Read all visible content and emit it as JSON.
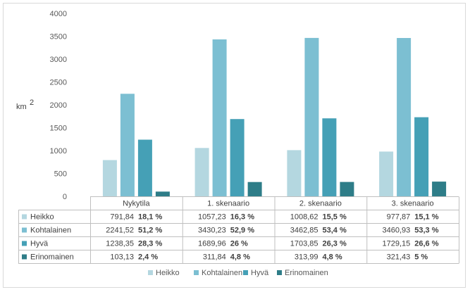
{
  "chart_data": {
    "type": "bar",
    "ylabel": "km",
    "ylabel_sup": "2",
    "ylim": [
      0,
      4000
    ],
    "yticks": [
      "0",
      "500",
      "1000",
      "1500",
      "2000",
      "2500",
      "3000",
      "3500",
      "4000"
    ],
    "categories": [
      "Nykytila",
      "1. skenaario",
      "2. skenaario",
      "3. skenaario"
    ],
    "series": [
      {
        "name": "Heikko",
        "color": "#b4d7e0",
        "values": [
          791.84,
          1057.23,
          1008.62,
          977.87
        ],
        "labels": [
          "791,84",
          "1057,23",
          "1008,62",
          "977,87"
        ],
        "pct": [
          "18,1 %",
          "16,3 %",
          "15,5 %",
          "15,1 %"
        ]
      },
      {
        "name": "Kohtalainen",
        "color": "#7cbfd2",
        "values": [
          2241.52,
          3430.23,
          3462.85,
          3460.93
        ],
        "labels": [
          "2241,52",
          "3430,23",
          "3462,85",
          "3460,93"
        ],
        "pct": [
          "51,2 %",
          "52,9 %",
          "53,4 %",
          "53,3 %"
        ]
      },
      {
        "name": "Hyvä",
        "color": "#45a0b6",
        "values": [
          1238.35,
          1689.96,
          1703.85,
          1729.15
        ],
        "labels": [
          "1238,35",
          "1689,96",
          "1703,85",
          "1729,15"
        ],
        "pct": [
          "28,3 %",
          "26 %",
          "26,3 %",
          "26,6 %"
        ]
      },
      {
        "name": "Erinomainen",
        "color": "#2e7d88",
        "values": [
          103.13,
          311.84,
          313.99,
          321.43
        ],
        "labels": [
          "103,13",
          "311,84",
          "313,99",
          "321,43"
        ],
        "pct": [
          "2,4 %",
          "4,8 %",
          "4,8 %",
          "5 %"
        ]
      }
    ],
    "grid": false,
    "legend": "bottom",
    "data_table": true
  }
}
